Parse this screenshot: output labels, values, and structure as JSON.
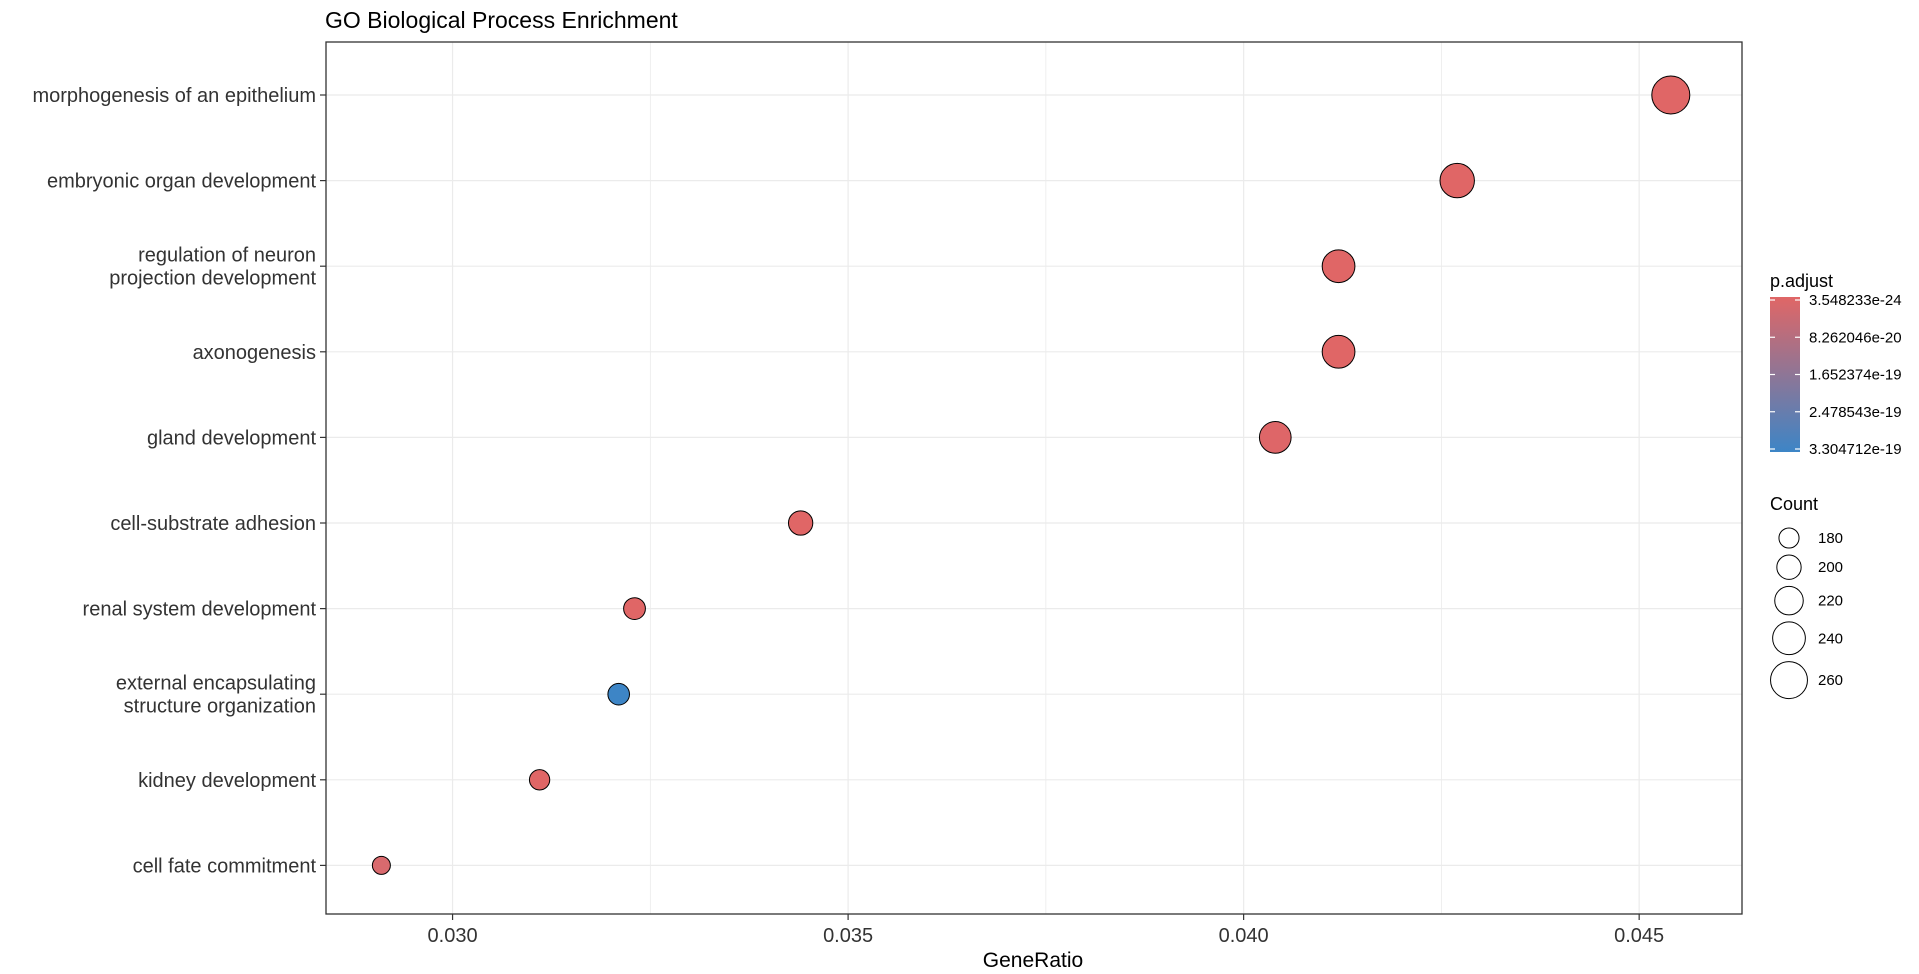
{
  "chart_data": {
    "type": "scatter",
    "title": "GO Biological Process Enrichment",
    "xlabel": "GeneRatio",
    "ylabel": "",
    "xlim": [
      0.0284,
      0.0463
    ],
    "x_ticks": [
      0.03,
      0.035,
      0.04,
      0.045
    ],
    "x_tick_labels": [
      "0.030",
      "0.035",
      "0.040",
      "0.045"
    ],
    "grid": true,
    "legend_position": "right",
    "colors": {
      "low_padj": "#E06666",
      "high_padj": "#3D85C6",
      "mark_stroke": "#000000",
      "panel_border": "#333333",
      "grid": "#EBEBEB"
    },
    "points": [
      {
        "term": "morphogenesis of an epithelium",
        "x": 0.0454,
        "count": 265,
        "color": "#E06666"
      },
      {
        "term": "embryonic organ development",
        "x": 0.0427,
        "count": 248,
        "color": "#E06666"
      },
      {
        "term": "regulation of neuron projection development",
        "x": 0.0412,
        "count": 240,
        "color": "#E06666"
      },
      {
        "term": "axonogenesis",
        "x": 0.0412,
        "count": 240,
        "color": "#E06666"
      },
      {
        "term": "gland development",
        "x": 0.0404,
        "count": 235,
        "color": "#DE6668"
      },
      {
        "term": "cell-substrate adhesion",
        "x": 0.0344,
        "count": 200,
        "color": "#E06666"
      },
      {
        "term": "renal system development",
        "x": 0.0323,
        "count": 188,
        "color": "#E06666"
      },
      {
        "term": "external encapsulating structure organization",
        "x": 0.0321,
        "count": 187,
        "color": "#3D85C6"
      },
      {
        "term": "kidney development",
        "x": 0.0311,
        "count": 181,
        "color": "#E06666"
      },
      {
        "term": "cell fate commitment",
        "x": 0.0291,
        "count": 170,
        "color": "#D96A6E"
      }
    ],
    "y_labels": [
      {
        "lines": [
          "morphogenesis of an epithelium"
        ]
      },
      {
        "lines": [
          "embryonic organ development"
        ]
      },
      {
        "lines": [
          "regulation of neuron",
          "projection development"
        ]
      },
      {
        "lines": [
          "axonogenesis"
        ]
      },
      {
        "lines": [
          "gland development"
        ]
      },
      {
        "lines": [
          "cell-substrate adhesion"
        ]
      },
      {
        "lines": [
          "renal system development"
        ]
      },
      {
        "lines": [
          "external encapsulating",
          "structure organization"
        ]
      },
      {
        "lines": [
          "kidney development"
        ]
      },
      {
        "lines": [
          "cell fate commitment"
        ]
      }
    ],
    "color_legend": {
      "title": "p.adjust",
      "labels": [
        "3.548233e-24",
        "8.262046e-20",
        "1.652374e-19",
        "2.478543e-19",
        "3.304712e-19"
      ],
      "colors": [
        "#E06666",
        "#3D85C6"
      ]
    },
    "size_legend": {
      "title": "Count",
      "values": [
        180,
        200,
        220,
        240,
        260
      ],
      "labels": [
        "180",
        "200",
        "220",
        "240",
        "260"
      ]
    }
  }
}
